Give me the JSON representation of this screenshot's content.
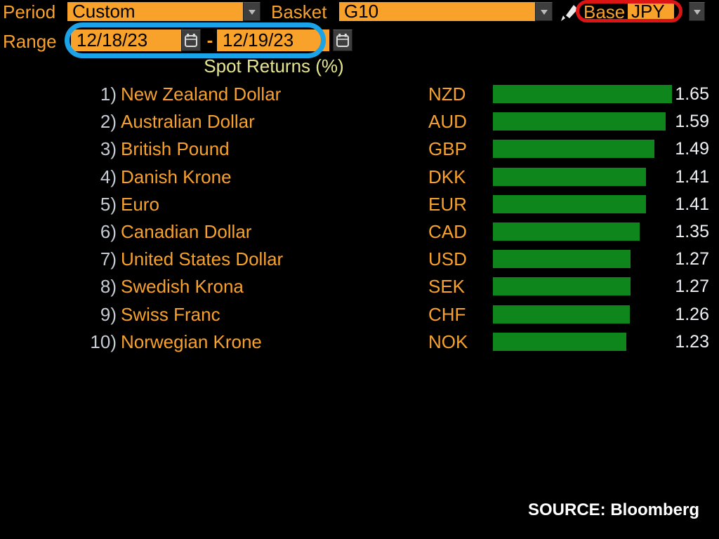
{
  "toolbar": {
    "period_label": "Period",
    "period_value": "Custom",
    "basket_label": "Basket",
    "basket_value": "G10",
    "base_label": "Base",
    "base_value": "JPY"
  },
  "range": {
    "label": "Range",
    "start_date": "12/18/23",
    "separator": "-",
    "end_date": "12/19/23"
  },
  "annotations": {
    "range_highlight_color": "#1aa3e8",
    "base_highlight_color": "#dd1414"
  },
  "chart_data": {
    "type": "bar",
    "orientation": "horizontal",
    "title": "Spot Returns (%)",
    "xlabel": "",
    "ylabel": "",
    "xlim": [
      0,
      1.65
    ],
    "grid": false,
    "legend": false,
    "bar_color": "#0e861c",
    "categories": [
      "New Zealand Dollar",
      "Australian Dollar",
      "British Pound",
      "Danish Krone",
      "Euro",
      "Canadian Dollar",
      "United States Dollar",
      "Swedish Krona",
      "Swiss Franc",
      "Norwegian Krone"
    ],
    "codes": [
      "NZD",
      "AUD",
      "GBP",
      "DKK",
      "EUR",
      "CAD",
      "USD",
      "SEK",
      "CHF",
      "NOK"
    ],
    "values": [
      1.65,
      1.59,
      1.49,
      1.41,
      1.41,
      1.35,
      1.27,
      1.27,
      1.26,
      1.23
    ],
    "rows": [
      {
        "rank": "1)",
        "name": "New Zealand Dollar",
        "code": "NZD",
        "value": 1.65,
        "label": "1.65"
      },
      {
        "rank": "2)",
        "name": "Australian Dollar",
        "code": "AUD",
        "value": 1.59,
        "label": "1.59"
      },
      {
        "rank": "3)",
        "name": "British Pound",
        "code": "GBP",
        "value": 1.49,
        "label": "1.49"
      },
      {
        "rank": "4)",
        "name": "Danish Krone",
        "code": "DKK",
        "value": 1.41,
        "label": "1.41"
      },
      {
        "rank": "5)",
        "name": "Euro",
        "code": "EUR",
        "value": 1.41,
        "label": "1.41"
      },
      {
        "rank": "6)",
        "name": "Canadian Dollar",
        "code": "CAD",
        "value": 1.35,
        "label": "1.35"
      },
      {
        "rank": "7)",
        "name": "United States Dollar",
        "code": "USD",
        "value": 1.27,
        "label": "1.27"
      },
      {
        "rank": "8)",
        "name": "Swedish Krona",
        "code": "SEK",
        "value": 1.27,
        "label": "1.27"
      },
      {
        "rank": "9)",
        "name": "Swiss Franc",
        "code": "CHF",
        "value": 1.26,
        "label": "1.26"
      },
      {
        "rank": "10)",
        "name": "Norwegian Krone",
        "code": "NOK",
        "value": 1.23,
        "label": "1.23"
      }
    ]
  },
  "footer": {
    "source": "SOURCE: Bloomberg"
  }
}
